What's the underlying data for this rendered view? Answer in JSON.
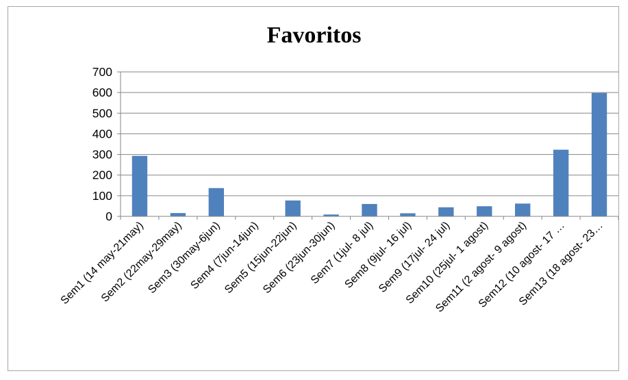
{
  "chart_data": {
    "type": "bar",
    "title": "Favoritos",
    "categories": [
      "Sem1 (14 may-21may)",
      "Sem2 (22may-29may)",
      "Sem3 (30may-6jun)",
      "Sem4 (7jun-14jun)",
      "Sem5 (15jun-22jun)",
      "Sem6 (23jun-30jun)",
      "Sem7 (1jul- 8 jul)",
      "Sem8 (9jul- 16 jul)",
      "Sem9 (17jul- 24 jul)",
      "Sem10 (25jul- 1 agost)",
      "Sem11 (2 agost- 9 agost)",
      "Sem12 (10 agost- 17 …",
      "Sem13 (18 agost- 23…"
    ],
    "values": [
      293,
      16,
      137,
      0,
      77,
      9,
      60,
      15,
      44,
      49,
      62,
      323,
      598
    ],
    "ylim": [
      0,
      700
    ],
    "yticks": [
      0,
      100,
      200,
      300,
      400,
      500,
      600,
      700
    ],
    "xlabel": "",
    "ylabel": "",
    "grid": true,
    "legend": "none",
    "bar_color": "#4f81bd",
    "grid_color": "#868686"
  }
}
